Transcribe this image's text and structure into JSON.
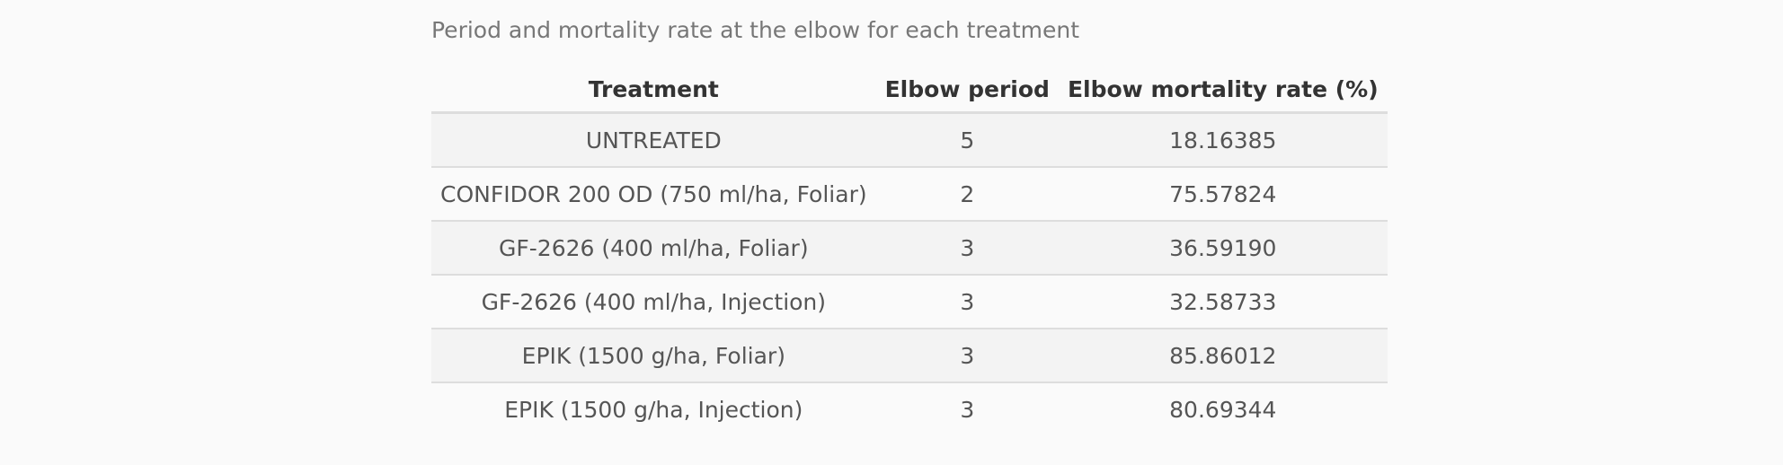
{
  "caption": "Period and mortality rate at the elbow for each treatment",
  "table": {
    "headers": [
      "Treatment",
      "Elbow period",
      "Elbow mortality rate (%)"
    ],
    "rows": [
      [
        "UNTREATED",
        "5",
        "18.16385"
      ],
      [
        "CONFIDOR 200 OD (750 ml/ha, Foliar)",
        "2",
        "75.57824"
      ],
      [
        "GF-2626 (400 ml/ha, Foliar)",
        "3",
        "36.59190"
      ],
      [
        "GF-2626 (400 ml/ha, Injection)",
        "3",
        "32.58733"
      ],
      [
        "EPIK (1500 g/ha, Foliar)",
        "3",
        "85.86012"
      ],
      [
        "EPIK (1500 g/ha, Injection)",
        "3",
        "80.69344"
      ]
    ]
  }
}
